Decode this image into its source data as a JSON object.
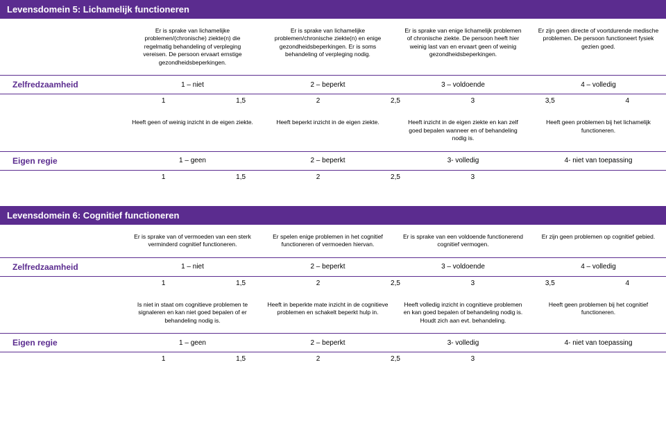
{
  "domain5": {
    "title": "Levensdomein 5:  Lichamelijk functioneren",
    "zelfredzaamheid": {
      "label": "Zelfredzaamheid",
      "desc": [
        "Er is sprake van lichamelijke problemen/(chronische) ziekte(n) die regelmatig behandeling of verpleging vereisen. De persoon ervaart ernstige gezondheidsbeperkingen.",
        "Er is sprake van lichamelijke problemen/chronische ziekte(n) en enige gezondheidsbeperkingen. Er is soms behandeling of verpleging nodig.",
        "Er is sprake van enige lichamelijk problemen of chronische ziekte. De persoon heeft hier weinig last van en ervaart geen of weinig gezondheidsbeperkingen.",
        "Er zijn geen directe of voortdurende medische problemen. De persoon functioneert fysiek gezien goed."
      ],
      "scale": [
        "1 – niet",
        "2 – beperkt",
        "3 – voldoende",
        "4 – volledig"
      ],
      "nums": [
        "1",
        "1,5",
        "2",
        "2,5",
        "3",
        "3,5",
        "4"
      ]
    },
    "eigenregie": {
      "label": "Eigen regie",
      "desc": [
        "Heeft geen of weinig inzicht in de eigen ziekte.",
        "Heeft beperkt inzicht in de eigen ziekte.",
        "Heeft inzicht in de eigen ziekte en kan zelf goed bepalen wanneer en of behandeling nodig is.",
        "Heeft geen problemen bij het lichamelijk functioneren."
      ],
      "scale": [
        "1 – geen",
        "2 – beperkt",
        "3- volledig",
        "4- niet van toepassing"
      ],
      "nums": [
        "1",
        "1,5",
        "2",
        "2,5",
        "3"
      ]
    }
  },
  "domain6": {
    "title": "Levensdomein 6:  Cognitief functioneren",
    "zelfredzaamheid": {
      "label": "Zelfredzaamheid",
      "desc": [
        "Er is sprake van of vermoeden van een sterk verminderd cognitief functioneren.",
        "Er spelen enige problemen in het cognitief functioneren of vermoeden hiervan.",
        "Er is sprake van een voldoende functionerend cognitief vermogen.",
        "Er zijn geen problemen op cognitief gebied."
      ],
      "scale": [
        "1 – niet",
        "2 – beperkt",
        "3 – voldoende",
        "4 – volledig"
      ],
      "nums": [
        "1",
        "1,5",
        "2",
        "2,5",
        "3",
        "3,5",
        "4"
      ]
    },
    "eigenregie": {
      "label": "Eigen regie",
      "desc": [
        "Is niet in staat om cognitieve problemen te signaleren en kan niet goed bepalen of er behandeling nodig is.",
        "Heeft in beperkte mate inzicht in de cognitieve problemen en schakelt beperkt hulp in.",
        "Heeft volledig inzicht in cognitieve problemen en kan goed bepalen of behandeling nodig is. Houdt zich aan evt. behandeling.",
        "Heeft geen problemen bij het cognitief functioneren."
      ],
      "scale": [
        "1 – geen",
        "2 – beperkt",
        "3- volledig",
        "4- niet van toepassing"
      ],
      "nums": [
        "1",
        "1,5",
        "2",
        "2,5",
        "3"
      ]
    }
  }
}
